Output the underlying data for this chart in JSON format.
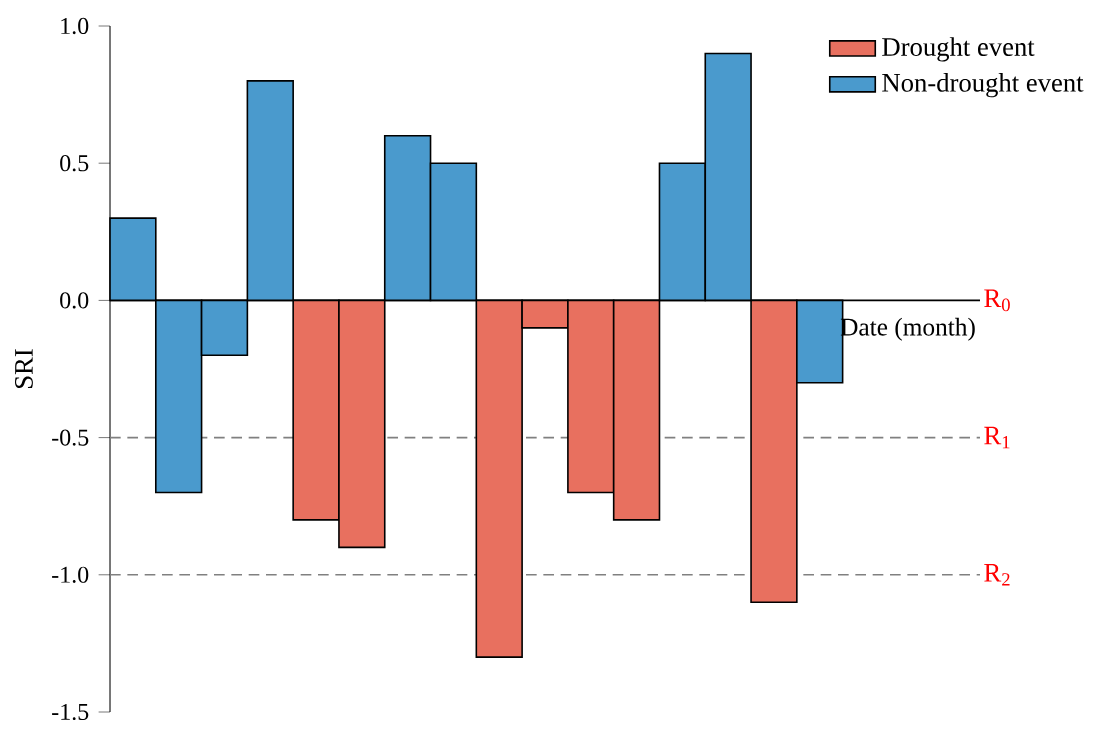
{
  "chart_data": {
    "type": "bar",
    "ylabel": "SRI",
    "xlabel": "Date (month)",
    "categories": [
      null,
      null,
      null,
      null,
      null,
      null,
      null,
      null,
      null,
      null,
      null,
      null,
      null,
      null,
      null,
      null,
      null,
      null,
      null
    ],
    "series": [
      {
        "name": "Drought event",
        "color": "#e8705f",
        "values": [
          null,
          null,
          null,
          null,
          -0.8,
          -0.9,
          null,
          null,
          -1.3,
          -0.1,
          -0.7,
          -0.8,
          null,
          null,
          -1.1,
          null,
          null,
          null,
          null
        ]
      },
      {
        "name": "Non-drought event",
        "color": "#4a9acd",
        "values": [
          0.3,
          -0.7,
          -0.2,
          0.8,
          null,
          null,
          0.6,
          0.5,
          null,
          null,
          null,
          null,
          0.5,
          0.9,
          null,
          -0.3,
          null,
          null,
          null
        ]
      }
    ],
    "ylim": [
      -1.5,
      1.0
    ],
    "yticks": [
      -1.5,
      {
        "value": -1.0,
        "label": "-1.0"
      },
      -0.5,
      {
        "value": 0.0,
        "label": "0.0"
      },
      0.5,
      {
        "value": 1.0,
        "label": "1.0"
      }
    ],
    "ref_lines": [
      {
        "axis": "y",
        "value": 0,
        "label": "R$_{0}$",
        "color": "#000000",
        "line_style": "solid"
      },
      {
        "axis": "y",
        "value": -0.5,
        "label": "R$_{1}$",
        "color": "#808080",
        "line_style": "dashed"
      },
      {
        "axis": "y",
        "value": -1.0,
        "label": "R$_{2}$",
        "color": "#808080",
        "line_style": "dashed"
      }
    ],
    "legend": "top right",
    "grid": false
  }
}
